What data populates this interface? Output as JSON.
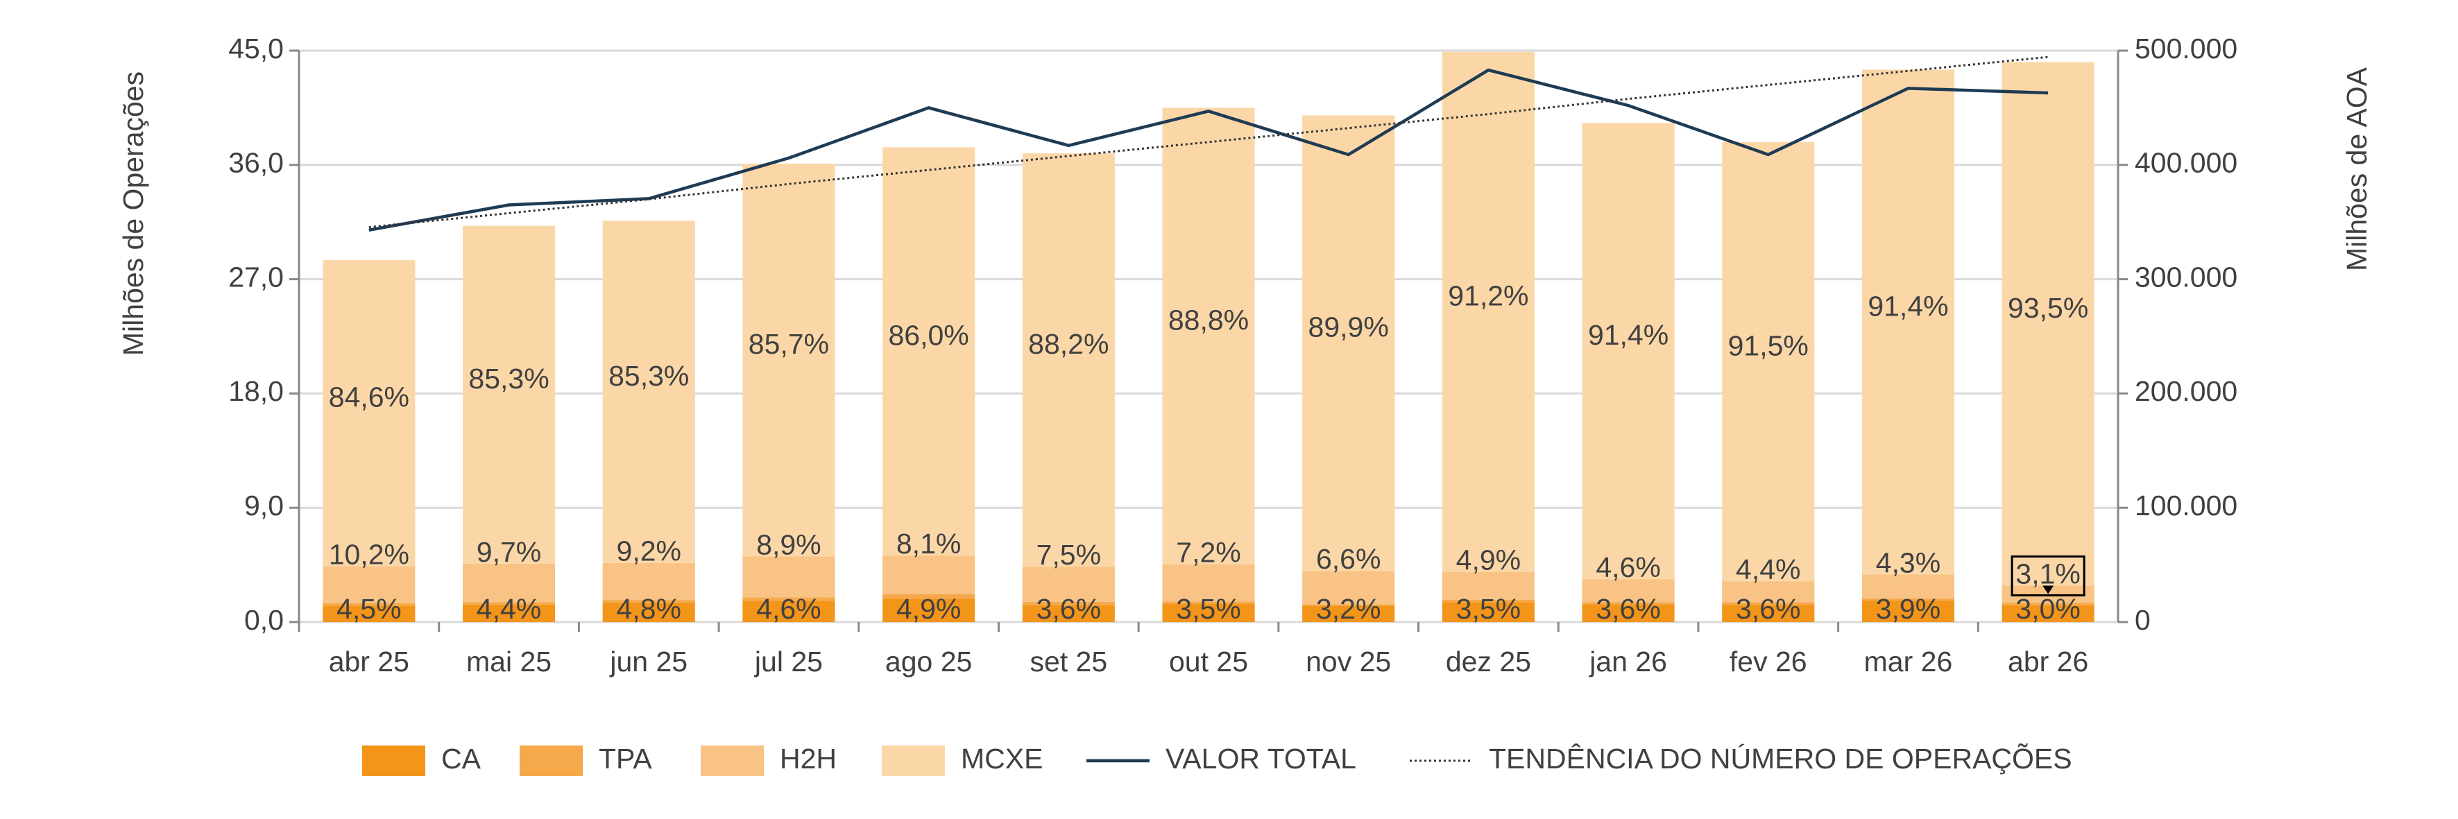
{
  "chart_data": {
    "type": "bar",
    "stacked": true,
    "y_label": "Milhões de Operações",
    "y2_label": "Milhões de AOA",
    "categories": [
      "abr 25",
      "mai 25",
      "jun 25",
      "jul 25",
      "ago 25",
      "set 25",
      "out 25",
      "nov 25",
      "dez 25",
      "jan 26",
      "fev 26",
      "mar 26",
      "abr 26"
    ],
    "series": [
      {
        "name": "CA",
        "color": "#f39519",
        "values": [
          1.28,
          1.37,
          1.52,
          1.66,
          1.83,
          1.33,
          1.42,
          1.28,
          1.57,
          1.41,
          1.36,
          1.7,
          1.32
        ],
        "share_labels": [
          "4,5%",
          "4,4%",
          "4,8%",
          "4,6%",
          "4,9%",
          "3,6%",
          "3,5%",
          "3,2%",
          "3,5%",
          "3,6%",
          "3,6%",
          "3,9%",
          "3,0%"
        ]
      },
      {
        "name": "TPA",
        "color": "#f5a94a",
        "values": [
          0.2,
          0.19,
          0.22,
          0.29,
          0.37,
          0.26,
          0.2,
          0.12,
          0.18,
          0.16,
          0.19,
          0.17,
          0.18
        ]
      },
      {
        "name": "H2H",
        "color": "#f8c384",
        "values": [
          2.91,
          3.03,
          2.91,
          3.21,
          3.03,
          2.77,
          2.92,
          2.63,
          2.2,
          1.81,
          1.66,
          1.87,
          1.37
        ],
        "share_labels": [
          "10,2%",
          "9,7%",
          "9,2%",
          "8,9%",
          "8,1%",
          "7,5%",
          "7,2%",
          "6,6%",
          "4,9%",
          "4,6%",
          "4,4%",
          "4,3%",
          "3,1%"
        ]
      },
      {
        "name": "MCXE",
        "color": "#fbd7a8",
        "values": [
          24.11,
          26.61,
          26.95,
          30.94,
          32.16,
          32.55,
          35.96,
          35.87,
          40.95,
          35.92,
          34.59,
          39.76,
          41.23
        ],
        "share_labels": [
          "84,6%",
          "85,3%",
          "85,3%",
          "85,7%",
          "86,0%",
          "88,2%",
          "88,8%",
          "89,9%",
          "91,2%",
          "91,4%",
          "91,5%",
          "91,4%",
          "93,5%"
        ]
      }
    ],
    "line_series": {
      "name": "VALOR TOTAL",
      "color": "#1f3b54",
      "axis": "y2",
      "values": [
        343000,
        365000,
        370500,
        406000,
        450000,
        417000,
        447000,
        409000,
        483000,
        452000,
        409000,
        467000,
        463000
      ]
    },
    "trend_series": {
      "name": "TENDÊNCIA DO NÚMERO DE OPERAÇÕES",
      "color": "#333333",
      "values": [
        31.1,
        32.2,
        33.3,
        34.5,
        35.6,
        36.7,
        37.8,
        38.9,
        40.0,
        41.2,
        42.3,
        43.4,
        44.5
      ]
    },
    "ylim": [
      0,
      45
    ],
    "yticks": [
      {
        "value": 0,
        "label": "0,0"
      },
      {
        "value": 9,
        "label": "9,0"
      },
      {
        "value": 18,
        "label": "18,0"
      },
      {
        "value": 27,
        "label": "27,0"
      },
      {
        "value": 36,
        "label": "36,0"
      },
      {
        "value": 45,
        "label": "45,0"
      }
    ],
    "y2lim": [
      0,
      500000
    ],
    "y2ticks": [
      0,
      {
        "value": 100000,
        "label": "100.000"
      },
      {
        "value": 200000,
        "label": "200.000"
      },
      {
        "value": 300000,
        "label": "300.000"
      },
      {
        "value": 400000,
        "label": "400.000"
      },
      {
        "value": 500000,
        "label": "500.000"
      }
    ],
    "grid": true,
    "legend": "bottom"
  }
}
